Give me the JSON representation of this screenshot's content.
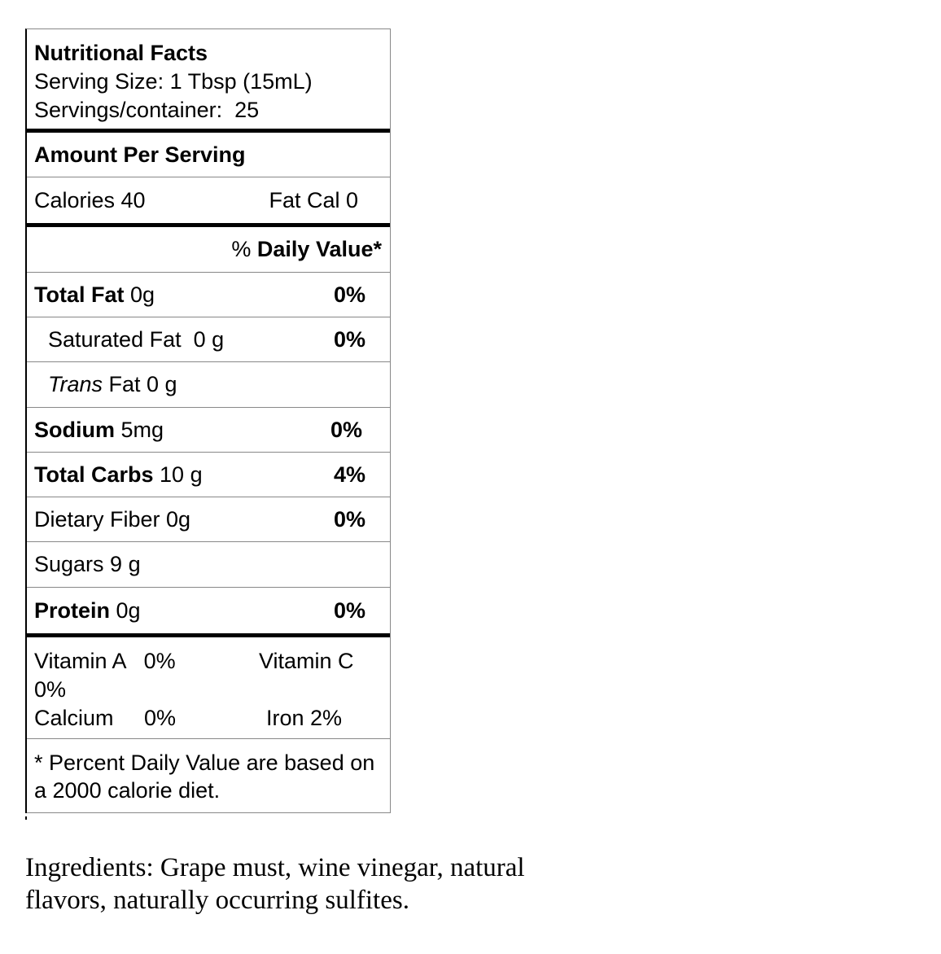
{
  "header": {
    "title": "Nutritional Facts",
    "serving_size": "Serving Size: 1 Tbsp (15mL)",
    "servings": "Servings/container:  25"
  },
  "amount_per_serving": "Amount Per Serving",
  "calories": {
    "label": "Calories 40",
    "fat_cal": "Fat Cal 0"
  },
  "daily_value_header": {
    "prefix": "% ",
    "bold": "Daily Value*"
  },
  "nutrients": [
    {
      "name": "Total Fat",
      "amount": " 0g",
      "dv": "0%"
    },
    {
      "name": "Saturated Fat  0 g",
      "amount": "",
      "dv": "0%"
    },
    {
      "name": "Trans",
      "amount": " Fat 0 g",
      "dv": ""
    },
    {
      "name": "Sodium",
      "amount": " 5mg",
      "dv": "0%"
    },
    {
      "name": "Total Carbs",
      "amount": " 10 g",
      "dv": "4%"
    },
    {
      "name": "Dietary Fiber 0g",
      "amount": "",
      "dv": "0%"
    },
    {
      "name": "Sugars 9 g",
      "amount": "",
      "dv": ""
    },
    {
      "name": "Protein",
      "amount": " 0g",
      "dv": "0%"
    }
  ],
  "vitamins": {
    "vitamin_a": "Vitamin A   0%",
    "vitamin_c": "Vitamin C",
    "vitamin_c_value": "0%",
    "calcium": "Calcium     0%",
    "iron": "Iron 2%"
  },
  "footnote": "* Percent Daily Value are based on a 2000 calorie diet.",
  "ingredients": "Ingredients: Grape must, wine vinegar, natural flavors, naturally occurring sulfites."
}
